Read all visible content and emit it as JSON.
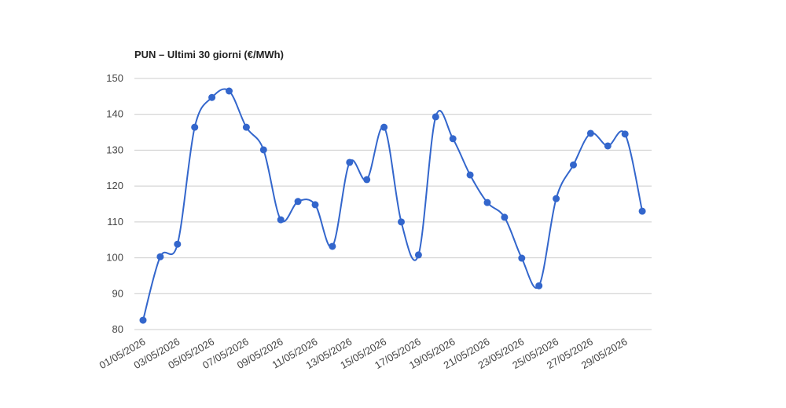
{
  "chart_data": {
    "type": "line",
    "title": "PUN – Ultimi 30 giorni (€/MWh)",
    "categories": [
      "01/05/2026",
      null,
      "03/05/2026",
      null,
      "05/05/2026",
      null,
      "07/05/2026",
      null,
      "09/05/2026",
      null,
      "11/05/2026",
      null,
      "13/05/2026",
      null,
      "15/05/2026",
      null,
      "17/05/2026",
      null,
      "19/05/2026",
      null,
      "21/05/2026",
      null,
      "23/05/2026",
      null,
      "25/05/2026",
      null,
      "27/05/2026",
      null,
      "29/05/2026",
      null
    ],
    "values": [
      82.6,
      100.3,
      103.8,
      136.4,
      144.7,
      146.5,
      136.4,
      130.1,
      110.6,
      115.7,
      114.8,
      103.2,
      126.6,
      121.8,
      136.4,
      110.0,
      100.8,
      139.3,
      133.2,
      123.1,
      115.4,
      111.3,
      99.9,
      92.2,
      116.5,
      125.9,
      134.7,
      131.2,
      134.5,
      113.0
    ],
    "color": "#3366cc",
    "ylim": [
      80,
      150
    ],
    "yticks": [
      80,
      90,
      100,
      110,
      120,
      130,
      140,
      150
    ],
    "grid": true
  }
}
